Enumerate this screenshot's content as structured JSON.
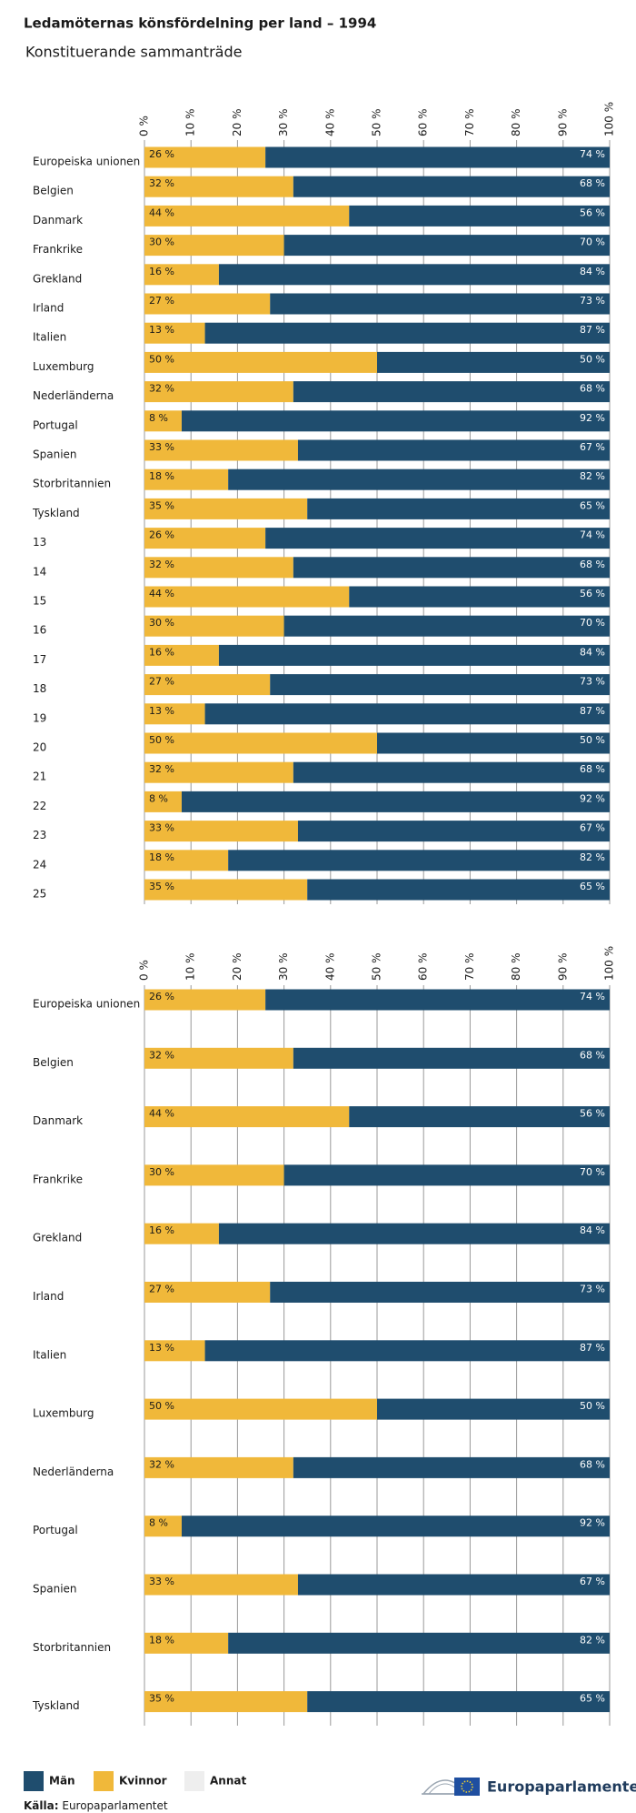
{
  "title": "Ledamöternas könsfördelning per land – 1994",
  "subtitle": "Konstituerande sammanträde",
  "source": {
    "label": "Källa:",
    "text": "Europaparlamentet"
  },
  "logo_text": "Europaparlamentet",
  "chart_data": [
    {
      "type": "stacked-bar-horizontal",
      "categories": [
        "Europeiska unionen",
        "Belgien",
        "Danmark",
        "Frankrike",
        "Grekland",
        "Irland",
        "Italien",
        "Luxemburg",
        "Nederländerna",
        "Portugal",
        "Spanien",
        "Storbritannien",
        "Tyskland",
        "13",
        "14",
        "15",
        "16",
        "17",
        "18",
        "19",
        "20",
        "21",
        "22",
        "23",
        "24",
        "25"
      ],
      "series": [
        {
          "name": "Kvinnor",
          "color": "#f0b83a",
          "values": [
            26,
            32,
            44,
            30,
            16,
            27,
            13,
            50,
            32,
            8,
            33,
            18,
            35,
            26,
            32,
            44,
            30,
            16,
            27,
            13,
            50,
            32,
            8,
            33,
            18,
            35
          ],
          "value_labels": [
            "26 %",
            "32 %",
            "44 %",
            "30 %",
            "16 %",
            "27 %",
            "13 %",
            "50 %",
            "32 %",
            "8 %",
            "33 %",
            "18 %",
            "35 %",
            "26 %",
            "32 %",
            "44 %",
            "30 %",
            "16 %",
            "27 %",
            "13 %",
            "50 %",
            "32 %",
            "8 %",
            "33 %",
            "18 %",
            "35 %"
          ]
        },
        {
          "name": "Män",
          "color": "#1f4d6e",
          "values": [
            74,
            68,
            56,
            70,
            84,
            73,
            87,
            50,
            68,
            92,
            67,
            82,
            65,
            74,
            68,
            56,
            70,
            84,
            73,
            87,
            50,
            68,
            92,
            67,
            82,
            65
          ],
          "value_labels": [
            "74 %",
            "68 %",
            "56 %",
            "70 %",
            "84 %",
            "73 %",
            "87 %",
            "50 %",
            "68 %",
            "92 %",
            "67 %",
            "82 %",
            "65 %",
            "74 %",
            "68 %",
            "56 %",
            "70 %",
            "84 %",
            "73 %",
            "87 %",
            "50 %",
            "68 %",
            "92 %",
            "67 %",
            "82 %",
            "65 %"
          ]
        },
        {
          "name": "Annat",
          "color": "#eeeeee",
          "values": [
            0,
            0,
            0,
            0,
            0,
            0,
            0,
            0,
            0,
            0,
            0,
            0,
            0,
            0,
            0,
            0,
            0,
            0,
            0,
            0,
            0,
            0,
            0,
            0,
            0,
            0
          ]
        }
      ],
      "xlim": [
        0,
        100
      ],
      "xticks": [
        {
          "value": 0,
          "label": "0 %"
        },
        {
          "value": 10,
          "label": "10 %"
        },
        {
          "value": 20,
          "label": "20 %"
        },
        {
          "value": 30,
          "label": "30 %"
        },
        {
          "value": 40,
          "label": "40 %"
        },
        {
          "value": 50,
          "label": "50 %"
        },
        {
          "value": 60,
          "label": "60 %"
        },
        {
          "value": 70,
          "label": "70 %"
        },
        {
          "value": 80,
          "label": "80 %"
        },
        {
          "value": 90,
          "label": "90 %"
        },
        {
          "value": 100,
          "label": "100 %"
        }
      ],
      "grid": true
    },
    {
      "type": "stacked-bar-horizontal",
      "categories": [
        "Europeiska unionen",
        "Belgien",
        "Danmark",
        "Frankrike",
        "Grekland",
        "Irland",
        "Italien",
        "Luxemburg",
        "Nederländerna",
        "Portugal",
        "Spanien",
        "Storbritannien",
        "Tyskland"
      ],
      "series": [
        {
          "name": "Kvinnor",
          "color": "#f0b83a",
          "values": [
            26,
            32,
            44,
            30,
            16,
            27,
            13,
            50,
            32,
            8,
            33,
            18,
            35
          ],
          "value_labels": [
            "26 %",
            "32 %",
            "44 %",
            "30 %",
            "16 %",
            "27 %",
            "13 %",
            "50 %",
            "32 %",
            "8 %",
            "33 %",
            "18 %",
            "35 %"
          ]
        },
        {
          "name": "Män",
          "color": "#1f4d6e",
          "values": [
            74,
            68,
            56,
            70,
            84,
            73,
            87,
            50,
            68,
            92,
            67,
            82,
            65
          ],
          "value_labels": [
            "74 %",
            "68 %",
            "56 %",
            "70 %",
            "84 %",
            "73 %",
            "87 %",
            "50 %",
            "68 %",
            "92 %",
            "67 %",
            "82 %",
            "65 %"
          ]
        },
        {
          "name": "Annat",
          "color": "#eeeeee",
          "values": [
            0,
            0,
            0,
            0,
            0,
            0,
            0,
            0,
            0,
            0,
            0,
            0,
            0
          ]
        }
      ],
      "xlim": [
        0,
        100
      ],
      "xticks": [
        {
          "value": 0,
          "label": "0 %"
        },
        {
          "value": 10,
          "label": "10 %"
        },
        {
          "value": 20,
          "label": "20 %"
        },
        {
          "value": 30,
          "label": "30 %"
        },
        {
          "value": 40,
          "label": "40 %"
        },
        {
          "value": 50,
          "label": "50 %"
        },
        {
          "value": 60,
          "label": "60 %"
        },
        {
          "value": 70,
          "label": "70 %"
        },
        {
          "value": 80,
          "label": "80 %"
        },
        {
          "value": 90,
          "label": "90 %"
        },
        {
          "value": 100,
          "label": "100 %"
        }
      ],
      "grid": true
    }
  ]
}
